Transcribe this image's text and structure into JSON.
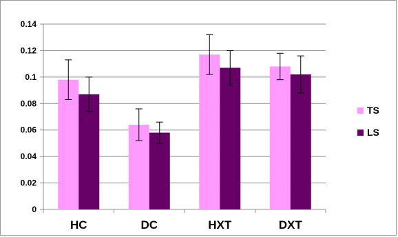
{
  "chart_data": {
    "type": "bar",
    "title": "",
    "xlabel": "",
    "ylabel": "",
    "categories": [
      "HC",
      "DC",
      "HXT",
      "DXT"
    ],
    "series": [
      {
        "name": "TS",
        "color": "#ff99ff",
        "values": [
          0.098,
          0.064,
          0.117,
          0.108
        ],
        "errors": [
          0.015,
          0.012,
          0.015,
          0.01
        ]
      },
      {
        "name": "LS",
        "color": "#660066",
        "values": [
          0.087,
          0.058,
          0.107,
          0.102
        ],
        "errors": [
          0.013,
          0.008,
          0.013,
          0.014
        ]
      }
    ],
    "ylim": [
      0,
      0.14
    ],
    "yticks": [
      0,
      0.02,
      0.04,
      0.06,
      0.08,
      0.1,
      0.12,
      0.14
    ],
    "ytick_labels": [
      "0",
      "0.02",
      "0.04",
      "0.06",
      "0.08",
      "0.1",
      "0.12",
      "0.14"
    ],
    "grid": true,
    "legend_position": "right"
  }
}
